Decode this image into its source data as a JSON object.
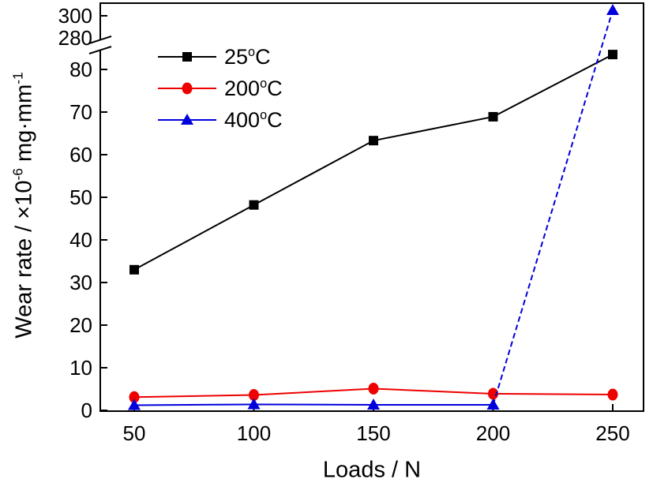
{
  "chart_data": {
    "type": "line",
    "title": "",
    "xlabel": "Loads / N",
    "ylabel": "Wear rate / ×10⁻⁶ mg·mm⁻¹",
    "ylabel_parts": {
      "prefix": "Wear rate / ×10",
      "sup1": "-6",
      "mid": " mg·mm",
      "sup2": "-1"
    },
    "x": [
      50,
      100,
      150,
      200,
      250
    ],
    "x_tick_labels": [
      "50",
      "100",
      "150",
      "200",
      "250"
    ],
    "y_axis": {
      "has_break": true,
      "lower_ticks": [
        0,
        10,
        20,
        30,
        40,
        50,
        60,
        70,
        80
      ],
      "upper_ticks": [
        280,
        300
      ],
      "lower_range": [
        0,
        85
      ],
      "upper_range": [
        278,
        312
      ]
    },
    "grid": false,
    "legend_position": "top-left-inside",
    "series": [
      {
        "name": "25°C",
        "legend": {
          "value": "25",
          "deg": "o",
          "unit": "C"
        },
        "color": "#000000",
        "marker": "square",
        "line_style": "solid",
        "values": [
          33,
          48.2,
          63.3,
          68.9,
          83.5
        ]
      },
      {
        "name": "200°C",
        "legend": {
          "value": "200",
          "deg": "o",
          "unit": "C"
        },
        "color": "#ee0000",
        "marker": "circle",
        "line_style": "solid",
        "values": [
          3.1,
          3.6,
          5.1,
          3.9,
          3.7
        ]
      },
      {
        "name": "400°C",
        "legend": {
          "value": "400",
          "deg": "o",
          "unit": "C"
        },
        "color": "#0000dd",
        "marker": "triangle-up",
        "line_style": "solid-then-dashed",
        "dash_from_index": 3,
        "values": [
          1.2,
          1.4,
          1.3,
          1.3,
          305
        ]
      }
    ]
  }
}
